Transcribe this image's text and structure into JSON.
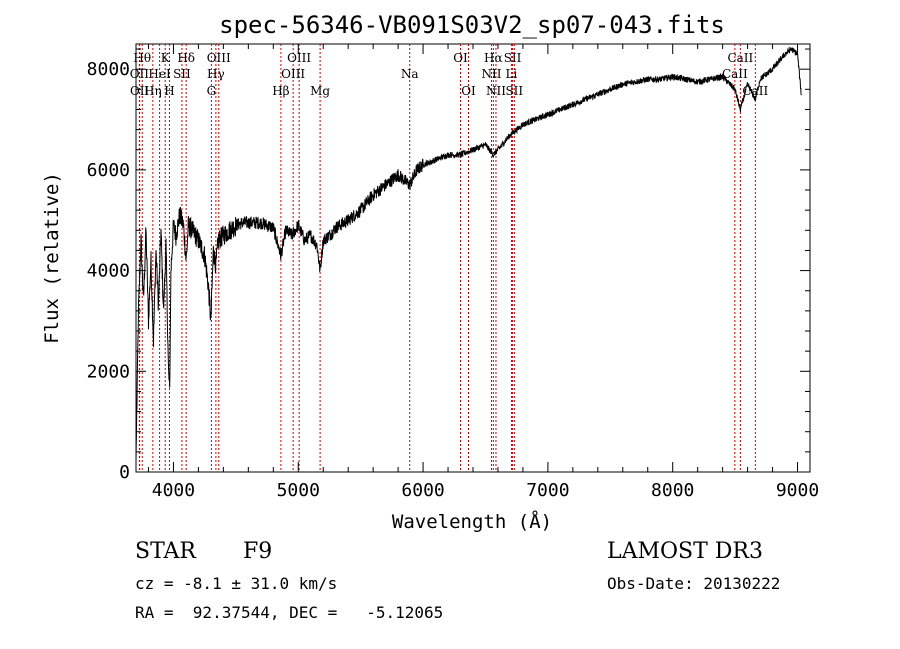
{
  "chart_data": {
    "type": "line",
    "title": "spec-56346-VB091S03V2_sp07-043.fits",
    "xlabel": "Wavelength (Å)",
    "ylabel": "Flux (relative)",
    "xlim": [
      3700,
      9100
    ],
    "ylim": [
      0,
      8500
    ],
    "x_ticks": [
      4000,
      5000,
      6000,
      7000,
      8000,
      9000
    ],
    "y_ticks": [
      0,
      2000,
      4000,
      6000,
      8000
    ],
    "grid": false,
    "series": [
      {
        "x": [
          3700,
          3720,
          3740,
          3760,
          3780,
          3800,
          3820,
          3840,
          3860,
          3880,
          3900,
          3920,
          3940,
          3960,
          3970,
          3980,
          4000,
          4020,
          4050,
          4080,
          4102,
          4120,
          4150,
          4200,
          4250,
          4280,
          4300,
          4320,
          4340,
          4360,
          4400,
          4450,
          4500,
          4550,
          4600,
          4700,
          4800,
          4861,
          4900,
          4950,
          5000,
          5050,
          5100,
          5150,
          5175,
          5200,
          5250,
          5300,
          5400,
          5500,
          5600,
          5700,
          5800,
          5893,
          5950,
          6000,
          6100,
          6200,
          6300,
          6400,
          6500,
          6563,
          6600,
          6700,
          6800,
          6900,
          7000,
          7200,
          7400,
          7500,
          7600,
          7700,
          7800,
          7900,
          8000,
          8100,
          8200,
          8300,
          8400,
          8498,
          8542,
          8600,
          8662,
          8700,
          8800,
          8900,
          8950,
          9000,
          9030
        ],
        "y": [
          200,
          3200,
          4600,
          3400,
          4800,
          3000,
          4200,
          2600,
          4400,
          3300,
          4800,
          3200,
          4500,
          2000,
          1600,
          4000,
          4900,
          4700,
          5100,
          4900,
          4200,
          4900,
          4800,
          4600,
          4300,
          3700,
          3000,
          4400,
          4100,
          4600,
          4700,
          4800,
          4900,
          4950,
          4950,
          4950,
          4850,
          4300,
          4800,
          4700,
          4900,
          4600,
          4700,
          4500,
          4000,
          4600,
          4700,
          4850,
          5000,
          5200,
          5500,
          5700,
          5900,
          5700,
          6000,
          6100,
          6200,
          6300,
          6300,
          6400,
          6500,
          6300,
          6400,
          6700,
          6900,
          7000,
          7100,
          7300,
          7500,
          7600,
          7700,
          7750,
          7800,
          7800,
          7850,
          7800,
          7750,
          7800,
          7850,
          7600,
          7200,
          7700,
          7400,
          7800,
          8000,
          8300,
          8400,
          8300,
          7500
        ]
      }
    ],
    "lines": [
      {
        "label": "OII",
        "x": 3727,
        "row": 2
      },
      {
        "label": "OII",
        "x": 3729,
        "row": 3
      },
      {
        "label": "Hθ",
        "x": 3750,
        "row": 1
      },
      {
        "label": "Hη",
        "x": 3835,
        "row": 3
      },
      {
        "label": "HeI",
        "x": 3889,
        "row": 2
      },
      {
        "label": "K",
        "x": 3934,
        "row": 1
      },
      {
        "label": "H",
        "x": 3968,
        "row": 3
      },
      {
        "label": "SII",
        "x": 4068,
        "row": 2
      },
      {
        "label": "Hδ",
        "x": 4102,
        "row": 1
      },
      {
        "label": "OIII",
        "x": 4363,
        "row": 1
      },
      {
        "label": "Hγ",
        "x": 4340,
        "row": 2
      },
      {
        "label": "G",
        "x": 4304,
        "row": 3
      },
      {
        "label": "Hβ",
        "x": 4861,
        "row": 3
      },
      {
        "label": "OIII",
        "x": 4959,
        "row": 2
      },
      {
        "label": "OIII",
        "x": 5007,
        "row": 1
      },
      {
        "label": "Mg",
        "x": 5175,
        "row": 3
      },
      {
        "label": "Na",
        "x": 5893,
        "row": 2
      },
      {
        "label": "OI",
        "x": 6300,
        "row": 1
      },
      {
        "label": "OI",
        "x": 6364,
        "row": 3
      },
      {
        "label": "NII",
        "x": 6548,
        "row": 2
      },
      {
        "label": "Hα",
        "x": 6563,
        "row": 1
      },
      {
        "label": "NII",
        "x": 6584,
        "row": 3
      },
      {
        "label": "SII",
        "x": 6717,
        "row": 1
      },
      {
        "label": "Li",
        "x": 6708,
        "row": 2
      },
      {
        "label": "SII",
        "x": 6731,
        "row": 3
      },
      {
        "label": "CaII",
        "x": 8498,
        "row": 2
      },
      {
        "label": "CaII",
        "x": 8542,
        "row": 1
      },
      {
        "label": "CaII",
        "x": 8662,
        "row": 3
      }
    ]
  },
  "info": {
    "class": "STAR",
    "subclass": "F9",
    "survey": "LAMOST DR3",
    "cz": "cz = -8.1 ± 31.0 km/s",
    "obs_date": "Obs-Date: 20130222",
    "radec": "RA =  92.37544, DEC =   -5.12065"
  }
}
